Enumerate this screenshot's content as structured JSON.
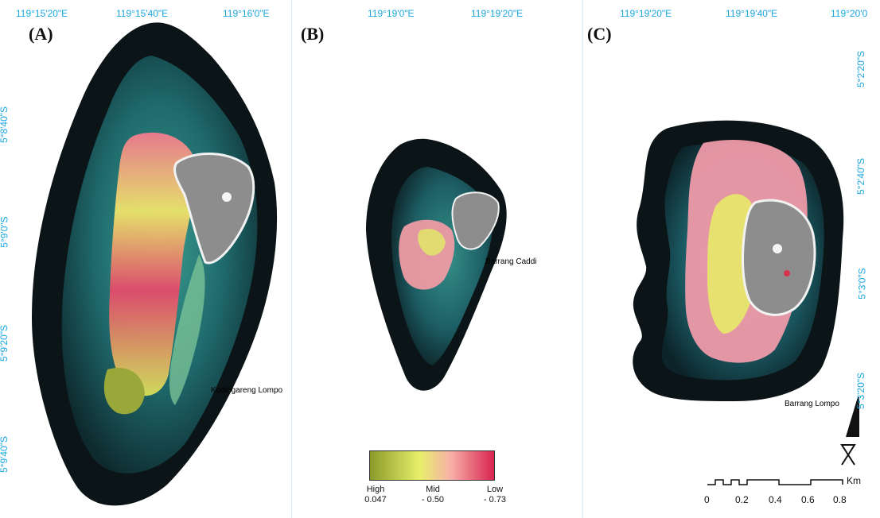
{
  "panels": {
    "a": {
      "label": "(A)",
      "island": "Kodingareng Lompo",
      "lon": [
        "119°15'20\"E",
        "119°15'40\"E",
        "119°16'0\"E"
      ],
      "lat": [
        "5°8'40\"S",
        "5°9'0\"S",
        "5°9'20\"S",
        "5°9'40\"S"
      ]
    },
    "b": {
      "label": "(B)",
      "island": "Barrang Caddi",
      "lon": [
        "119°19'0\"E",
        "119°19'20\"E"
      ]
    },
    "c": {
      "label": "(C)",
      "island": "Barrang Lompo",
      "lon": [
        "119°19'20\"E",
        "119°19'40\"E",
        "119°20'0"
      ],
      "lat": [
        "5°2'20\"S",
        "5°2'40\"S",
        "5°3'0\"S",
        "5°3'20\"S"
      ]
    }
  },
  "legend": {
    "colors": [
      "#8a9a2a",
      "#e8ef6a",
      "#f7b0a8",
      "#d9244f"
    ],
    "high": "High",
    "high_value": "0.047",
    "mid": "Mid",
    "mid_value": "- 0.50",
    "low": "Low",
    "low_value": "- 0.73"
  },
  "scale": {
    "unit": "Km",
    "ticks": [
      "0",
      "0.2",
      "0.4",
      "0.6",
      "0.8"
    ]
  },
  "colors": {
    "grid_label": "#1aa6e0",
    "deep_water": "#0b1416",
    "shallow_water": "#1d6b70",
    "seagrass_high": "#d4dc57",
    "seagrass_low": "#e24a6e",
    "island_land": "#8d8d8d"
  }
}
